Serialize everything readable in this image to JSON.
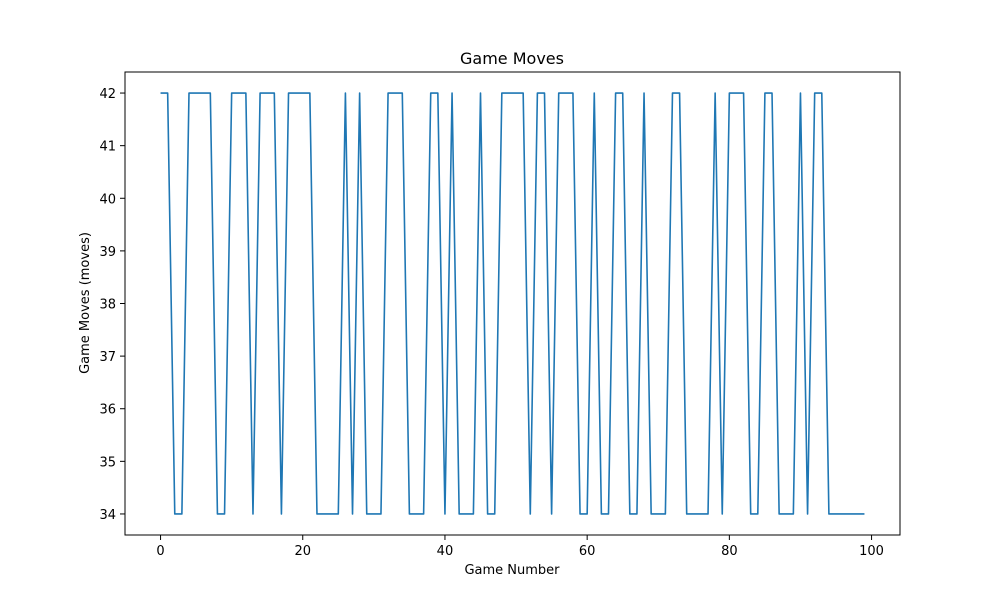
{
  "chart_data": {
    "type": "line",
    "title": "Game Moves",
    "xlabel": "Game Number",
    "ylabel": "Game Moves (moves)",
    "xlim": [
      -5,
      104
    ],
    "ylim": [
      33.6,
      42.4
    ],
    "xticks": [
      0,
      20,
      40,
      60,
      80,
      100
    ],
    "yticks": [
      34,
      35,
      36,
      37,
      38,
      39,
      40,
      41,
      42
    ],
    "grid": false,
    "line_color": "#1f77b4",
    "x": [
      0,
      1,
      2,
      3,
      4,
      5,
      6,
      7,
      8,
      9,
      10,
      11,
      12,
      13,
      14,
      15,
      16,
      17,
      18,
      19,
      20,
      21,
      22,
      23,
      24,
      25,
      26,
      27,
      28,
      29,
      30,
      31,
      32,
      33,
      34,
      35,
      36,
      37,
      38,
      39,
      40,
      41,
      42,
      43,
      44,
      45,
      46,
      47,
      48,
      49,
      50,
      51,
      52,
      53,
      54,
      55,
      56,
      57,
      58,
      59,
      60,
      61,
      62,
      63,
      64,
      65,
      66,
      67,
      68,
      69,
      70,
      71,
      72,
      73,
      74,
      75,
      76,
      77,
      78,
      79,
      80,
      81,
      82,
      83,
      84,
      85,
      86,
      87,
      88,
      89,
      90,
      91,
      92,
      93,
      94,
      95,
      96,
      97,
      98,
      99
    ],
    "series": [
      {
        "values": [
          42,
          42,
          34,
          34,
          42,
          42,
          42,
          42,
          34,
          34,
          42,
          42,
          42,
          34,
          42,
          42,
          42,
          34,
          42,
          42,
          42,
          42,
          34,
          34,
          34,
          34,
          42,
          34,
          42,
          34,
          34,
          34,
          42,
          42,
          42,
          34,
          34,
          34,
          42,
          42,
          34,
          42,
          34,
          34,
          34,
          42,
          34,
          34,
          42,
          42,
          42,
          42,
          34,
          42,
          42,
          34,
          42,
          42,
          42,
          34,
          34,
          42,
          34,
          34,
          42,
          42,
          34,
          34,
          42,
          34,
          34,
          34,
          42,
          42,
          34,
          34,
          34,
          34,
          42,
          34,
          42,
          42,
          42,
          34,
          34,
          42,
          42,
          34,
          34,
          34,
          42,
          34,
          42,
          42,
          34,
          34,
          34,
          34,
          34,
          34
        ]
      }
    ]
  }
}
